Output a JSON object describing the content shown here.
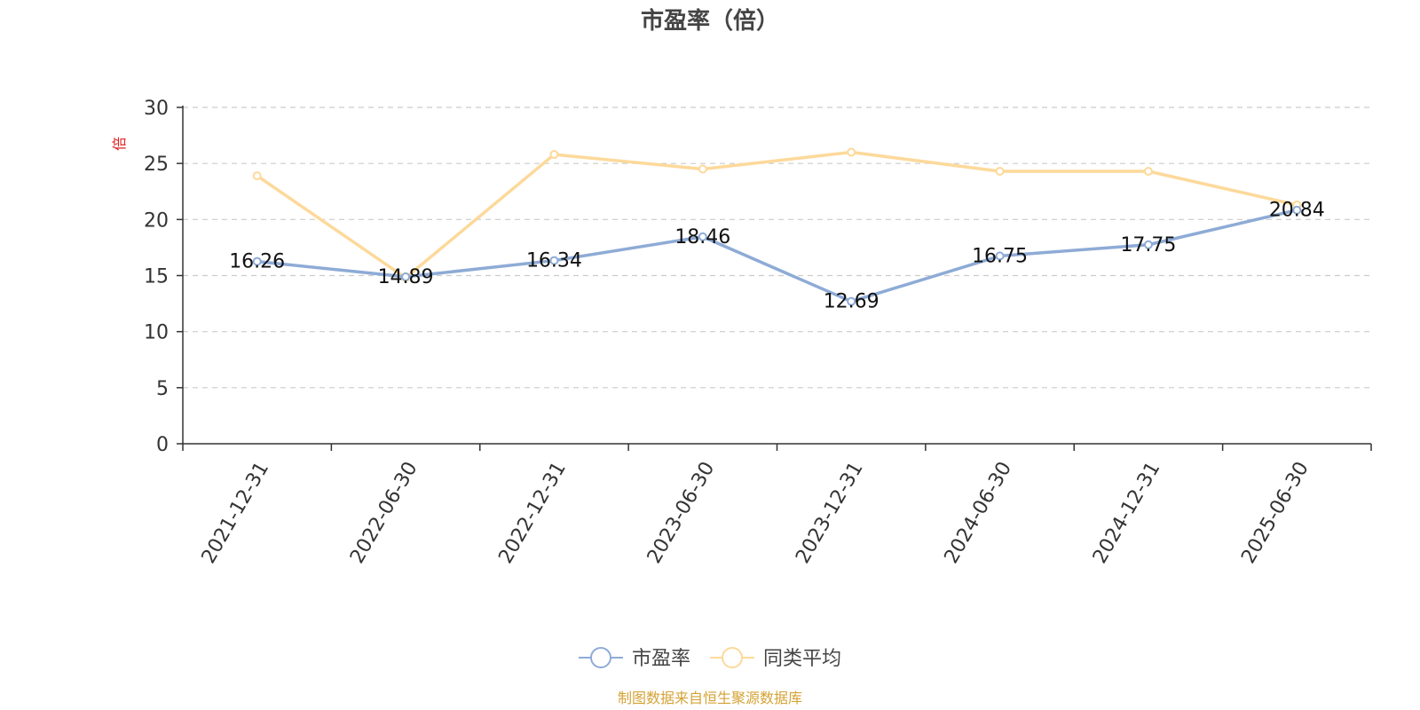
{
  "chart_data": {
    "type": "line",
    "title": "市盈率（倍）",
    "y_unit": "倍",
    "categories": [
      "2021-12-31",
      "2022-06-30",
      "2022-12-31",
      "2023-06-30",
      "2023-12-31",
      "2024-06-30",
      "2024-12-31",
      "2025-06-30"
    ],
    "ylim": [
      0,
      30
    ],
    "yticks": [
      0,
      5,
      10,
      15,
      20,
      25,
      30
    ],
    "grid": true,
    "legend_position": "bottom",
    "series": [
      {
        "name": "市盈率",
        "values": [
          16.26,
          14.89,
          16.34,
          18.46,
          12.69,
          16.75,
          17.75,
          20.84
        ],
        "color": "#8eabd6",
        "labels": [
          "16.26",
          "14.89",
          "16.34",
          "18.46",
          "12.69",
          "16.75",
          "17.75",
          "20.84"
        ]
      },
      {
        "name": "同类平均",
        "values": [
          23.9,
          14.8,
          25.8,
          24.5,
          26.0,
          24.3,
          24.3,
          21.3
        ],
        "color": "#fdd99a"
      }
    ]
  },
  "source_note": "制图数据来自恒生聚源数据库",
  "colors": {
    "source_text": "#d4a336",
    "unit_text": "#e02020",
    "grid": "#cccccc",
    "axis": "#333333"
  }
}
